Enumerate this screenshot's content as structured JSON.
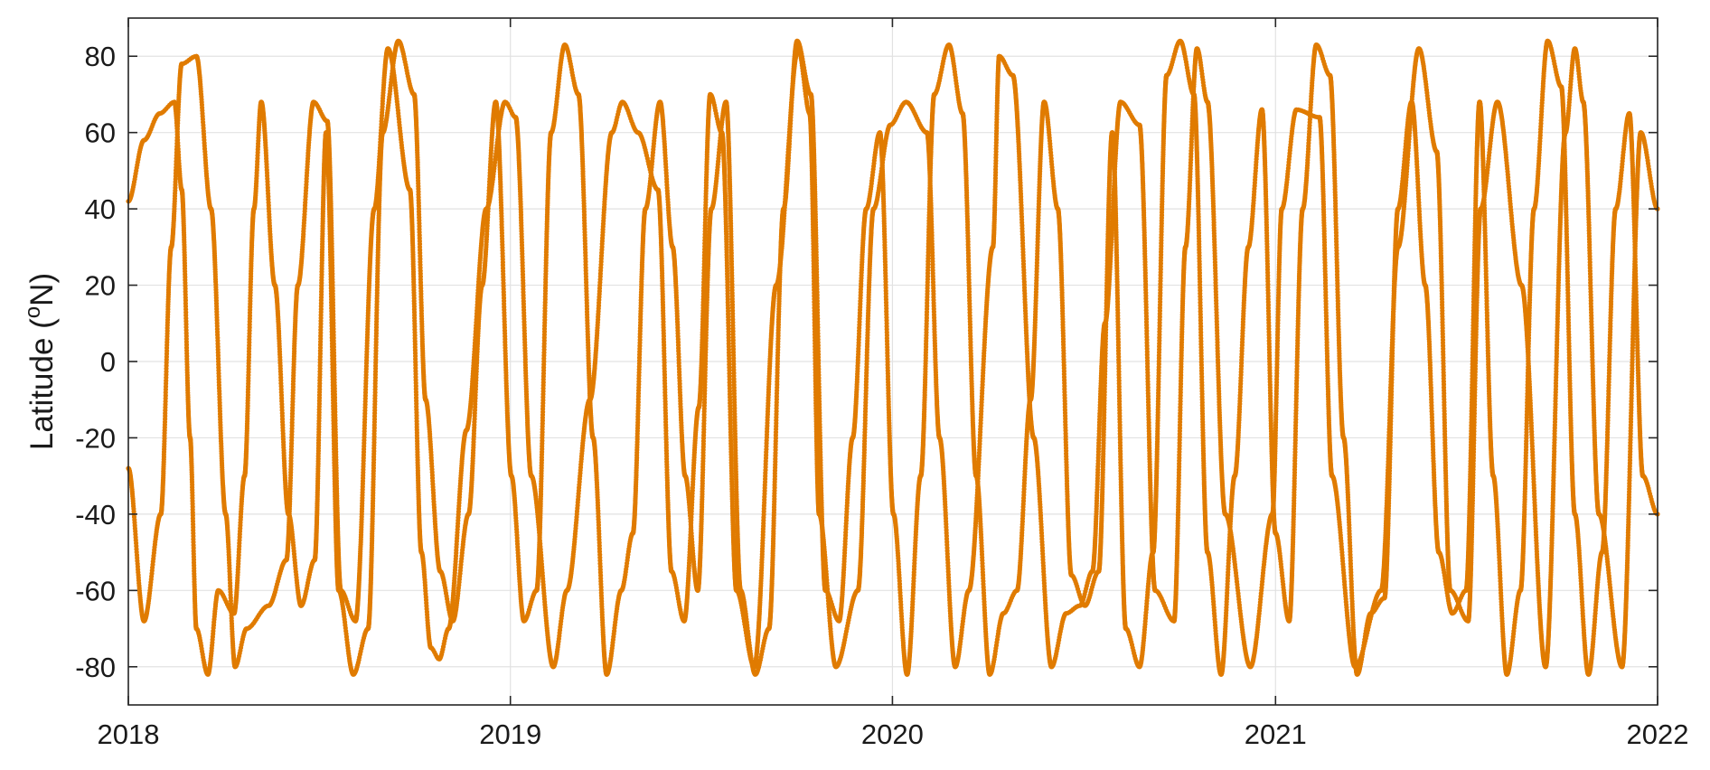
{
  "chart_data": {
    "type": "scatter",
    "title": "",
    "xlabel": "",
    "ylabel": "Latitude (°N)",
    "ylabel_parts": {
      "main": "Latitude (",
      "sup": "o",
      "rest": "N)"
    },
    "xlim": [
      "2018-01-01",
      "2022-01-01"
    ],
    "ylim": [
      -90,
      90
    ],
    "x_ticks": [
      "2018",
      "2019",
      "2020",
      "2021",
      "2022"
    ],
    "y_ticks": [
      80,
      60,
      40,
      20,
      0,
      -20,
      -40,
      -60,
      -80
    ],
    "grid": true,
    "marker_color": "#E07B00",
    "series": [
      {
        "x": [
          "2018-01-01",
          "2018-01-16",
          "2018-02-01",
          "2018-02-11",
          "2018-02-21",
          "2018-03-07",
          "2018-03-21",
          "2018-04-04",
          "2018-04-13",
          "2018-04-24",
          "2018-05-15",
          "2018-06-01",
          "2018-06-12",
          "2018-06-27",
          "2018-07-10",
          "2018-07-23",
          "2018-08-06",
          "2018-08-24",
          "2018-09-06",
          "2018-09-27",
          "2018-10-08",
          "2018-10-17",
          "2018-10-25",
          "2018-11-03",
          "2018-11-20",
          "2018-12-09",
          "2018-12-27",
          "2019-01-06",
          "2019-01-21",
          "2019-02-11",
          "2019-02-24",
          "2019-03-18",
          "2019-04-08",
          "2019-04-18",
          "2019-05-03",
          "2019-05-22",
          "2019-06-04",
          "2019-06-16",
          "2019-06-30",
          "2019-07-11",
          "2019-07-22",
          "2019-08-05",
          "2019-08-22",
          "2019-09-12",
          "2019-10-03",
          "2019-10-14",
          "2019-10-23",
          "2019-11-08",
          "2019-11-29",
          "2019-12-14",
          "2019-12-30",
          "2020-01-14",
          "2020-02-03",
          "2020-02-15",
          "2020-03-01",
          "2020-03-14",
          "2020-04-06",
          "2020-04-12",
          "2020-04-25",
          "2020-05-15",
          "2020-06-01",
          "2020-06-15",
          "2020-06-28",
          "2020-07-10",
          "2020-07-22",
          "2020-08-06",
          "2020-08-24",
          "2020-09-08",
          "2020-09-26",
          "2020-10-07",
          "2020-10-18",
          "2020-10-28",
          "2020-11-14",
          "2020-12-08",
          "2020-12-29",
          "2021-01-07",
          "2021-01-21",
          "2021-02-12",
          "2021-02-24",
          "2021-03-18",
          "2021-04-12",
          "2021-04-28",
          "2021-05-18",
          "2021-06-04",
          "2021-06-17",
          "2021-07-04",
          "2021-07-16",
          "2021-08-01",
          "2021-08-24",
          "2021-09-16",
          "2021-10-05",
          "2021-10-14",
          "2021-10-22",
          "2021-11-06",
          "2021-11-28",
          "2021-12-16",
          "2022-01-01"
        ],
        "y": [
          -28,
          -68,
          -40,
          30,
          78,
          80,
          40,
          -40,
          -80,
          -70,
          -64,
          -52,
          20,
          68,
          63,
          -60,
          -68,
          40,
          82,
          45,
          -50,
          -75,
          -78,
          -70,
          -18,
          40,
          68,
          64,
          -30,
          -80,
          -60,
          -10,
          60,
          68,
          60,
          45,
          -55,
          -68,
          -12,
          70,
          60,
          -60,
          -80,
          20,
          82,
          65,
          -40,
          -80,
          -60,
          40,
          62,
          68,
          60,
          -20,
          -80,
          -60,
          30,
          80,
          75,
          -20,
          -80,
          -66,
          -64,
          -55,
          10,
          68,
          62,
          -60,
          -68,
          30,
          82,
          68,
          -40,
          -80,
          -40,
          40,
          66,
          64,
          -30,
          -80,
          -60,
          30,
          82,
          55,
          -60,
          -68,
          40,
          68,
          20,
          -80,
          60,
          82,
          68,
          -40,
          -80,
          60,
          40
        ]
      },
      {
        "x": [
          "2018-01-01",
          "2018-01-16",
          "2018-01-31",
          "2018-02-14",
          "2018-02-21",
          "2018-03-01",
          "2018-03-07",
          "2018-03-18",
          "2018-03-28",
          "2018-04-12",
          "2018-04-22",
          "2018-05-01",
          "2018-05-08",
          "2018-05-21",
          "2018-06-03",
          "2018-06-15",
          "2018-06-28",
          "2018-07-09",
          "2018-07-21",
          "2018-08-04",
          "2018-08-18",
          "2018-09-01",
          "2018-09-16",
          "2018-10-01",
          "2018-10-12",
          "2018-10-26",
          "2018-11-07",
          "2018-11-22",
          "2018-12-05",
          "2018-12-18",
          "2019-01-02",
          "2019-01-14",
          "2019-01-26",
          "2019-02-09",
          "2019-02-22",
          "2019-03-07",
          "2019-03-21",
          "2019-04-03",
          "2019-04-17",
          "2019-04-28",
          "2019-05-10",
          "2019-05-24",
          "2019-06-05",
          "2019-06-17",
          "2019-06-29",
          "2019-07-12",
          "2019-07-26",
          "2019-08-09",
          "2019-08-23",
          "2019-09-05",
          "2019-09-19",
          "2019-10-02",
          "2019-10-15",
          "2019-10-29",
          "2019-11-11",
          "2019-11-24",
          "2019-12-07",
          "2019-12-20",
          "2020-01-02",
          "2020-01-15",
          "2020-01-28",
          "2020-02-10",
          "2020-02-24",
          "2020-03-08",
          "2020-03-21",
          "2020-04-03",
          "2020-04-16",
          "2020-04-29",
          "2020-05-12",
          "2020-05-25",
          "2020-06-07",
          "2020-06-20",
          "2020-07-03",
          "2020-07-16",
          "2020-07-29",
          "2020-08-11",
          "2020-08-24",
          "2020-09-06",
          "2020-09-19",
          "2020-10-02",
          "2020-10-15",
          "2020-10-28",
          "2020-11-10",
          "2020-11-23",
          "2020-12-06",
          "2020-12-19",
          "2021-01-01",
          "2021-01-14",
          "2021-01-27",
          "2021-02-09",
          "2021-02-22",
          "2021-03-07",
          "2021-03-20",
          "2021-04-02",
          "2021-04-15",
          "2021-04-28",
          "2021-05-11",
          "2021-05-24",
          "2021-06-06",
          "2021-06-19",
          "2021-07-02",
          "2021-07-15",
          "2021-07-28",
          "2021-08-10",
          "2021-08-23",
          "2021-09-05",
          "2021-09-18",
          "2021-10-01",
          "2021-10-14",
          "2021-10-27",
          "2021-11-09",
          "2021-11-22",
          "2021-12-05",
          "2021-12-18",
          "2022-01-01"
        ],
        "y": [
          42,
          58,
          65,
          68,
          45,
          -20,
          -70,
          -82,
          -60,
          -66,
          -30,
          40,
          68,
          20,
          -40,
          -64,
          -52,
          60,
          -60,
          -82,
          -70,
          60,
          84,
          70,
          -10,
          -55,
          -68,
          -40,
          20,
          68,
          -30,
          -68,
          -60,
          60,
          83,
          70,
          -20,
          -82,
          -60,
          -45,
          40,
          68,
          30,
          -30,
          -60,
          40,
          68,
          -60,
          -82,
          -70,
          40,
          84,
          70,
          -60,
          -68,
          -20,
          40,
          60,
          -40,
          -82,
          -30,
          70,
          83,
          65,
          -30,
          -82,
          -66,
          -60,
          -10,
          68,
          40,
          -56,
          -64,
          -55,
          60,
          -70,
          -80,
          -50,
          75,
          84,
          70,
          -50,
          -82,
          -30,
          30,
          66,
          -45,
          -68,
          40,
          83,
          75,
          -20,
          -82,
          -66,
          -62,
          40,
          68,
          20,
          -50,
          -66,
          -60,
          68,
          -30,
          -82,
          -60,
          40,
          84,
          72,
          -40,
          -82,
          -50,
          40,
          65,
          -30,
          -40
        ]
      }
    ]
  }
}
